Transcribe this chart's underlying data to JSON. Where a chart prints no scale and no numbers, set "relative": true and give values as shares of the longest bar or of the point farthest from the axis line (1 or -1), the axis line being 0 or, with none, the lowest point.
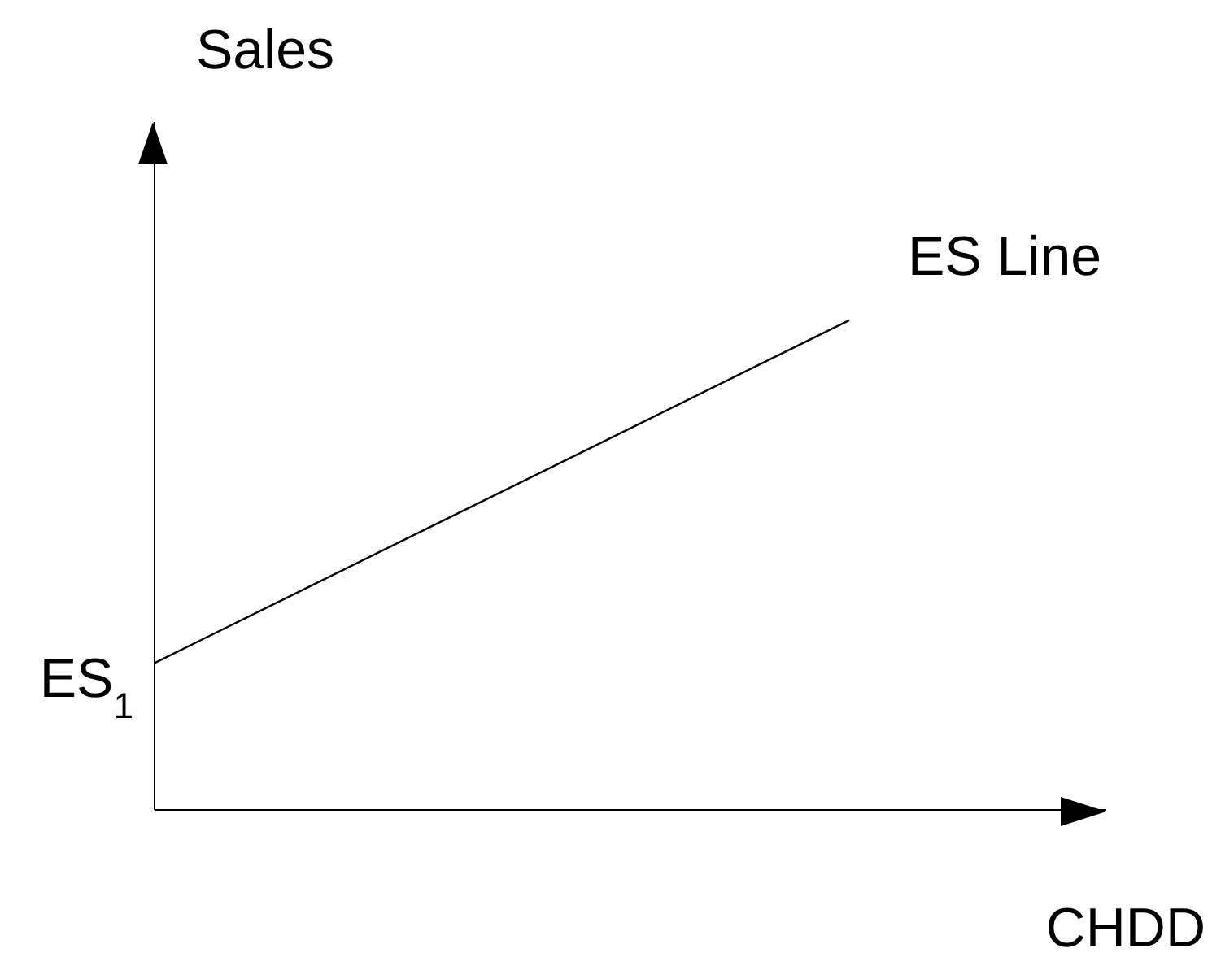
{
  "chart_data": {
    "type": "line",
    "relative": true,
    "xlabel": "CHDD",
    "ylabel": "Sales",
    "marker": "none",
    "line_style": "solid",
    "categories": [
      null,
      null
    ],
    "series": [
      {
        "color": "#000000",
        "values": [
          0.3,
          1
        ]
      }
    ],
    "annotations": [
      "ES Line",
      "ES$_{1}$"
    ]
  }
}
